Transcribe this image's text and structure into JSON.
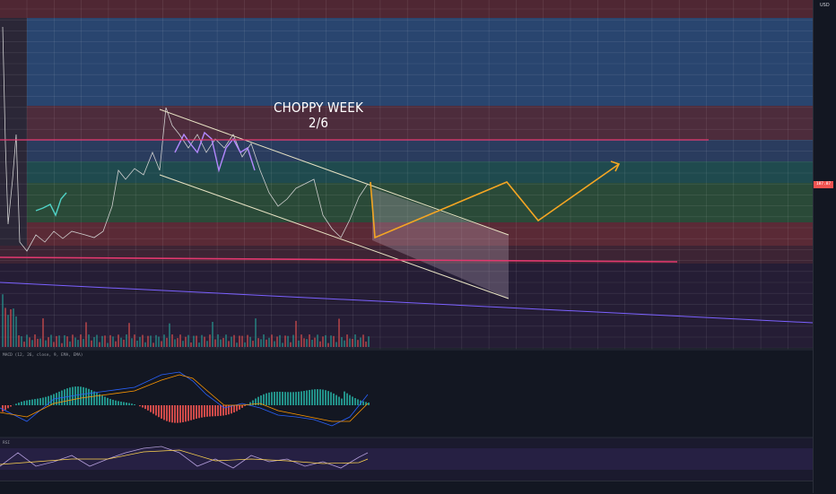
{
  "annotation": {
    "line1": "CHOPPY WEEK",
    "line2": "2/6"
  },
  "axis_unit": "USD",
  "last_price_tag": "187.87",
  "macd_label": "MACD (12, 26, close, 9, EMA, EMA)",
  "rsi_label": "RSI",
  "colors": {
    "background": "#131722",
    "channel": "#e8e3c4",
    "projection": "#f5a623",
    "support": "#e2386f",
    "trendline": "#7b61ff",
    "up": "#26a69a",
    "down": "#ef5350"
  },
  "chart_data": {
    "type": "line",
    "title": "CHOPPY WEEK 2/6",
    "series": [
      {
        "name": "",
        "values": []
      }
    ],
    "projection": "up-down-up zigzag within falling channel",
    "grid": true
  }
}
